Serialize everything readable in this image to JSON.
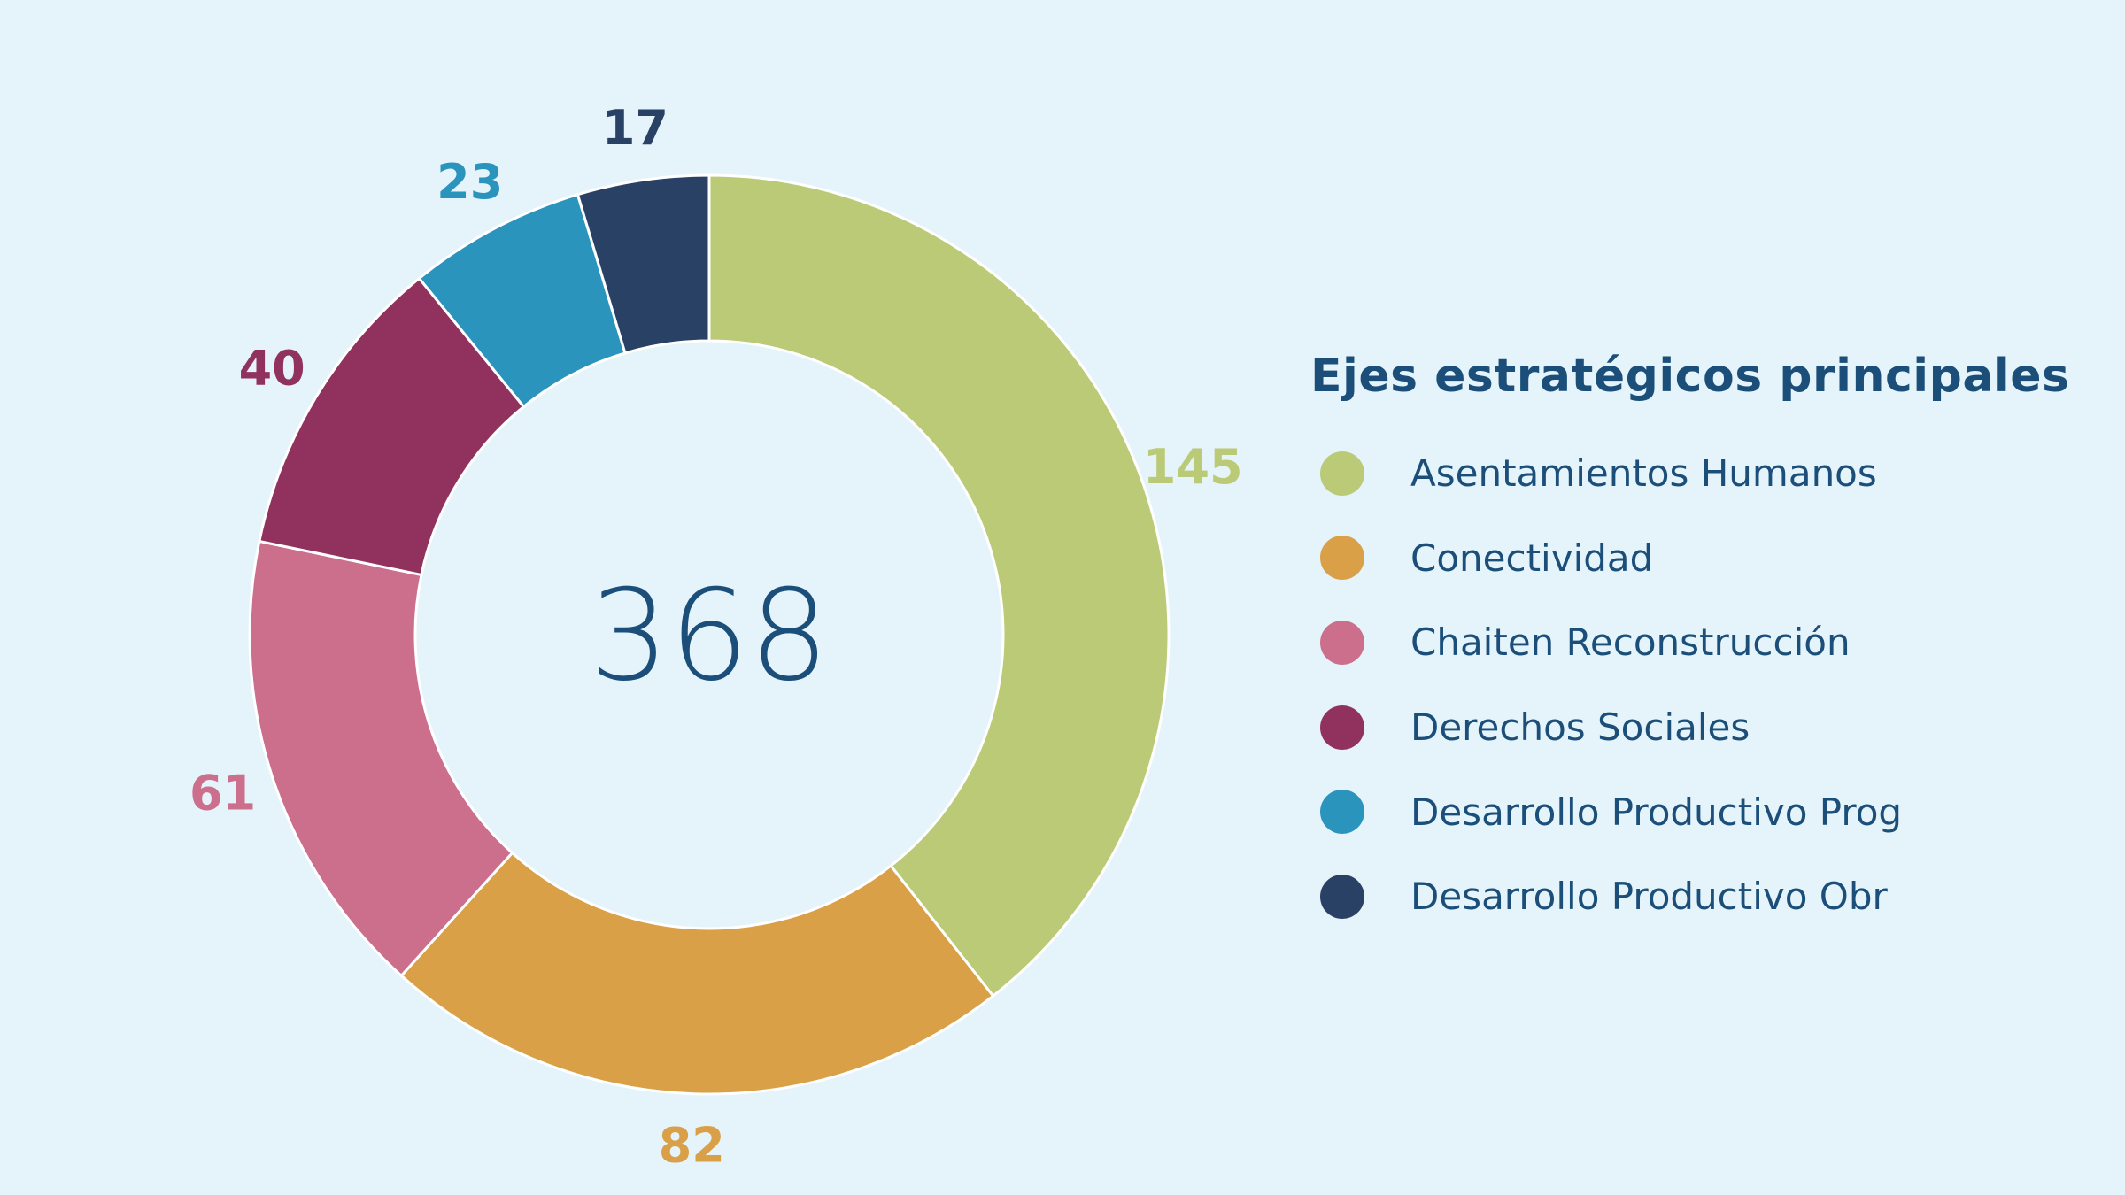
{
  "chart_data": {
    "type": "pie",
    "variant": "donut",
    "total_label": "368",
    "legend_title": "Ejes estratégicos principales",
    "legend_position": "right",
    "categories": [
      "Asentamientos Humanos",
      "Conectividad",
      "Chaiten Reconstrucción",
      "Derechos Sociales",
      "Desarrollo Productivo Prog",
      "Desarrollo Productivo Obr"
    ],
    "values": [
      145,
      82,
      61,
      40,
      23,
      17
    ],
    "colors": [
      "#BBCA77",
      "#D9A048",
      "#CC6F8C",
      "#91325E",
      "#2A94BD",
      "#2A4166"
    ]
  },
  "colors": {
    "background": "#E5F3FA",
    "text": "#1B4F7A"
  }
}
